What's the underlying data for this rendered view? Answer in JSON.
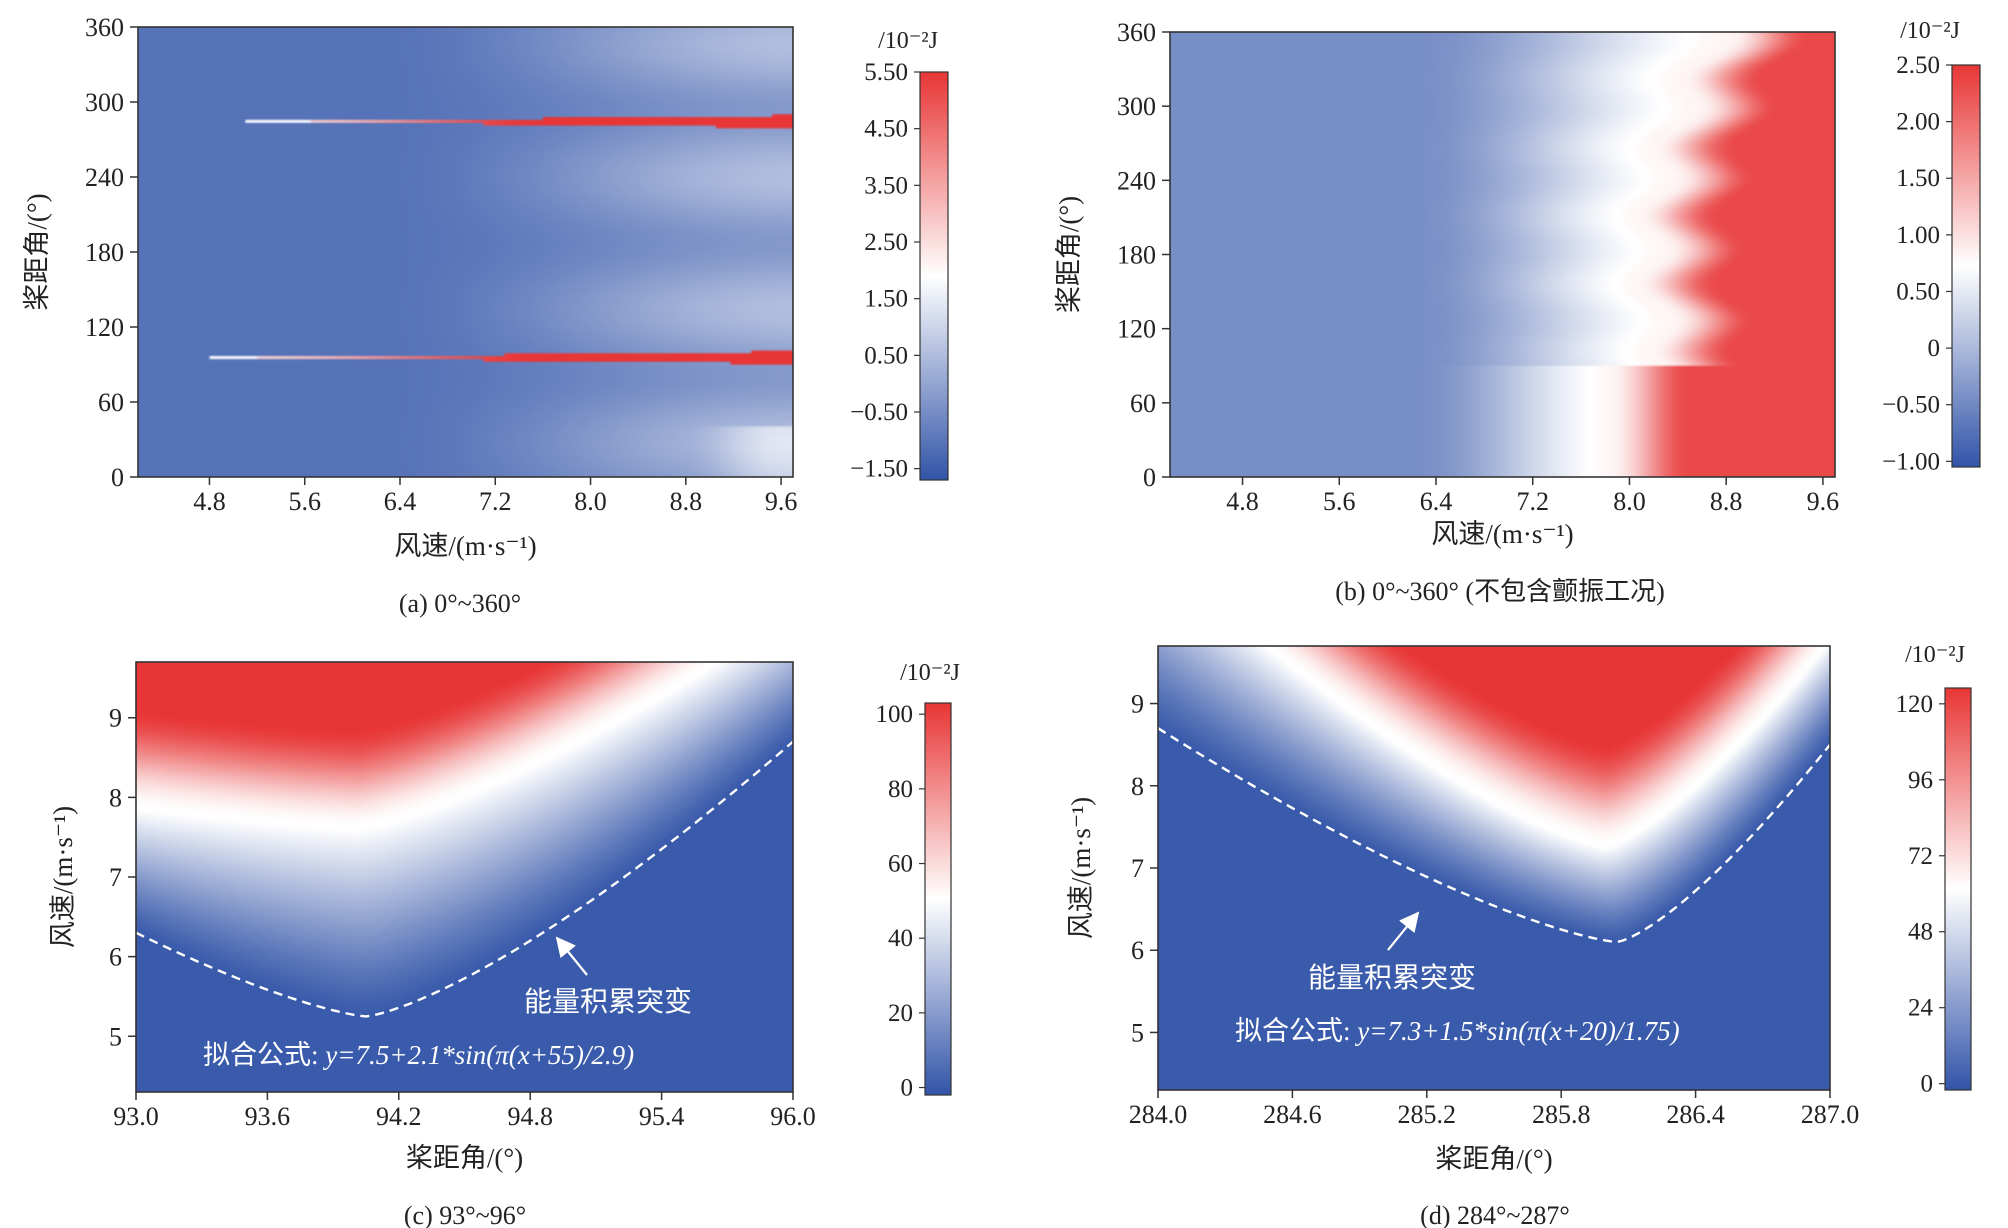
{
  "colors": {
    "blue": "#3254a8",
    "white": "#ffffff",
    "red": "#e83535",
    "text": "#222222"
  },
  "chart_data": [
    {
      "id": "a",
      "type": "heatmap",
      "caption": "(a) 0°~360°",
      "xlabel": "风速/(m·s⁻¹)",
      "ylabel": "桨距角/(°)",
      "xlim": [
        4.2,
        9.7
      ],
      "ylim": [
        0,
        360
      ],
      "xticks": [
        "4.8",
        "5.6",
        "6.4",
        "7.2",
        "8.0",
        "8.8",
        "9.6"
      ],
      "yticks": [
        "0",
        "60",
        "120",
        "180",
        "240",
        "300",
        "360"
      ],
      "colorbar": {
        "unit": "/10⁻²J",
        "ticks": [
          "5.50",
          "4.50",
          "3.50",
          "2.50",
          "1.50",
          "0.50",
          "−0.50",
          "−1.50"
        ],
        "range": [
          -1.7,
          5.5
        ]
      },
      "bands": [
        {
          "center": 95,
          "width": 5,
          "start": 5.1,
          "peak": 5.5
        },
        {
          "center": 285,
          "width": 5,
          "start": 5.4,
          "peak": 5.5
        }
      ]
    },
    {
      "id": "b",
      "type": "heatmap",
      "caption": "(b) 0°~360° (不包含颤振工况)",
      "xlabel": "风速/(m·s⁻¹)",
      "ylabel": "桨距角/(°)",
      "xlim": [
        4.2,
        9.7
      ],
      "ylim": [
        0,
        360
      ],
      "xticks": [
        "4.8",
        "5.6",
        "6.4",
        "7.2",
        "8.0",
        "8.8",
        "9.6"
      ],
      "yticks": [
        "0",
        "60",
        "120",
        "180",
        "240",
        "300",
        "360"
      ],
      "colorbar": {
        "unit": "/10⁻²J",
        "ticks": [
          "2.50",
          "2.00",
          "1.50",
          "1.00",
          "0.50",
          "0",
          "−0.50",
          "−1.00"
        ],
        "range": [
          -1.05,
          2.5
        ]
      }
    },
    {
      "id": "c",
      "type": "heatmap",
      "caption": "(c) 93°~96°",
      "xlabel": "桨距角/(°)",
      "ylabel": "风速/(m·s⁻¹)",
      "xlim": [
        93.0,
        96.0
      ],
      "ylim": [
        4.3,
        9.7
      ],
      "xticks": [
        "93.0",
        "93.6",
        "94.2",
        "94.8",
        "95.4",
        "96.0"
      ],
      "yticks": [
        "5",
        "6",
        "7",
        "8",
        "9"
      ],
      "colorbar": {
        "unit": "/10⁻²J",
        "ticks": [
          "100",
          "80",
          "60",
          "40",
          "20",
          "0"
        ],
        "range": [
          -2,
          103
        ]
      },
      "threshold_curve": {
        "vertex_x": 94.05,
        "base": 5.25,
        "left_y": 6.3,
        "right_y": 8.7
      },
      "white_contour": {
        "vertex_x": 94.0,
        "base": 7.6,
        "left_y": 7.85,
        "right_y": 10.3
      },
      "annotation": "能量积累突变",
      "formula_label": "拟合公式: ",
      "formula": "y=7.5+2.1*sin(π(x+55)/2.9)"
    },
    {
      "id": "d",
      "type": "heatmap",
      "caption": "(d) 284°~287°",
      "xlabel": "桨距角/(°)",
      "ylabel": "风速/(m·s⁻¹)",
      "xlim": [
        284.0,
        287.0
      ],
      "ylim": [
        4.3,
        9.7
      ],
      "xticks": [
        "284.0",
        "284.6",
        "285.2",
        "285.8",
        "286.4",
        "287.0"
      ],
      "yticks": [
        "5",
        "6",
        "7",
        "8",
        "9"
      ],
      "colorbar": {
        "unit": "/10⁻²J",
        "ticks": [
          "120",
          "96",
          "72",
          "48",
          "24",
          "0"
        ],
        "range": [
          -2,
          125
        ]
      },
      "threshold_curve": {
        "vertex_x": 286.05,
        "base": 6.1,
        "left_y": 8.7,
        "right_y": 8.5
      },
      "white_contour": {
        "vertex_x": 286.0,
        "base": 7.25,
        "left_y": 10.8,
        "right_y": 9.75
      },
      "annotation": "能量积累突变",
      "formula_label": "拟合公式: ",
      "formula": "y=7.3+1.5*sin(π(x+20)/1.75)"
    }
  ]
}
